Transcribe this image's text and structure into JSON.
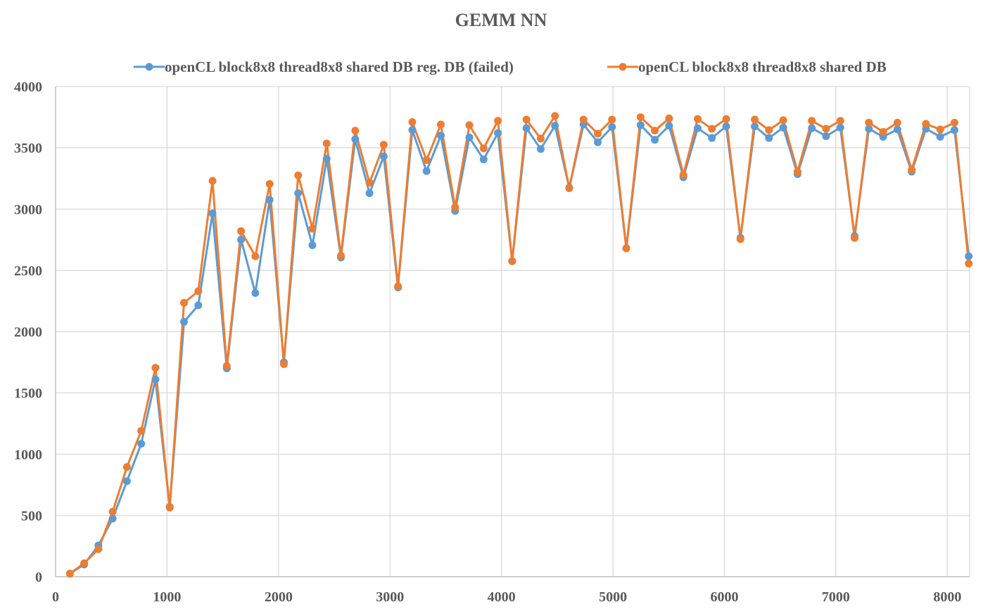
{
  "chart_data": {
    "type": "line",
    "title": "GEMM NN",
    "xlim": [
      0,
      8200
    ],
    "ylim": [
      0,
      4000
    ],
    "x_ticks": [
      "0",
      "1000",
      "2000",
      "3000",
      "4000",
      "5000",
      "6000",
      "7000",
      "8000"
    ],
    "y_ticks": [
      "0",
      "500",
      "1000",
      "1500",
      "2000",
      "2500",
      "3000",
      "3500",
      "4000"
    ],
    "grid": true,
    "legend_position": "top",
    "x": [
      128,
      256,
      384,
      512,
      640,
      768,
      896,
      1024,
      1152,
      1280,
      1408,
      1536,
      1664,
      1792,
      1920,
      2048,
      2176,
      2304,
      2432,
      2560,
      2688,
      2816,
      2944,
      3072,
      3200,
      3328,
      3456,
      3584,
      3712,
      3840,
      3968,
      4096,
      4224,
      4352,
      4480,
      4608,
      4736,
      4864,
      4992,
      5120,
      5248,
      5376,
      5504,
      5632,
      5760,
      5888,
      6016,
      6144,
      6272,
      6400,
      6528,
      6656,
      6784,
      6912,
      7040,
      7168,
      7296,
      7424,
      7552,
      7680,
      7808,
      7936,
      8064,
      8192
    ],
    "series": [
      {
        "name": "openCL block8x8 thread8x8 shared DB reg. DB (failed)",
        "color": "#5b9bd5",
        "values": [
          25,
          100,
          255,
          475,
          780,
          1085,
          1610,
          570,
          2080,
          2215,
          2965,
          1700,
          2750,
          2315,
          3075,
          1750,
          3130,
          2705,
          3410,
          2605,
          3570,
          3130,
          3430,
          2360,
          3645,
          3310,
          3600,
          2985,
          3585,
          3405,
          3620,
          2575,
          3660,
          3490,
          3680,
          3175,
          3690,
          3545,
          3670,
          2680,
          3685,
          3565,
          3680,
          3260,
          3660,
          3580,
          3675,
          2765,
          3675,
          3580,
          3665,
          3285,
          3660,
          3595,
          3665,
          2780,
          3655,
          3590,
          3650,
          3305,
          3655,
          3590,
          3645,
          2615
        ]
      },
      {
        "name": "openCL block8x8 thread8x8 shared DB",
        "color": "#ed7d31",
        "values": [
          25,
          110,
          225,
          530,
          895,
          1190,
          1705,
          565,
          2235,
          2330,
          3230,
          1720,
          2820,
          2615,
          3205,
          1735,
          3275,
          2840,
          3535,
          2620,
          3640,
          3215,
          3525,
          2370,
          3710,
          3400,
          3690,
          3015,
          3685,
          3495,
          3720,
          2575,
          3730,
          3575,
          3760,
          3170,
          3730,
          3615,
          3730,
          2680,
          3750,
          3640,
          3740,
          3280,
          3735,
          3655,
          3735,
          2755,
          3730,
          3645,
          3725,
          3305,
          3720,
          3655,
          3720,
          2765,
          3705,
          3630,
          3705,
          3320,
          3695,
          3650,
          3705,
          2555
        ]
      }
    ]
  }
}
